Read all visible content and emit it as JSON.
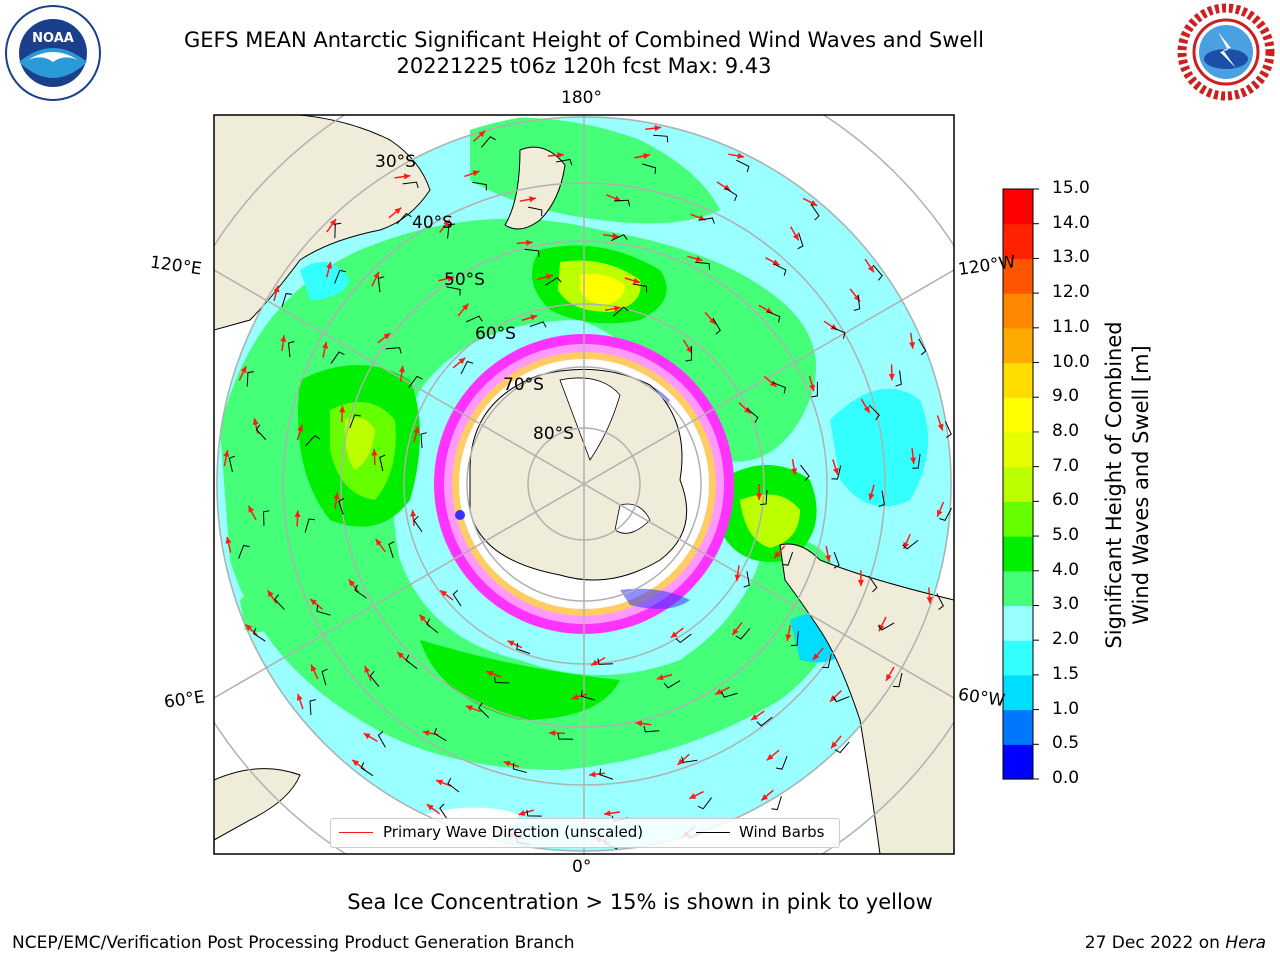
{
  "header": {
    "title_line1": "GEFS MEAN Antarctic Significant Height of Combined Wind Waves and Swell",
    "title_line2": "20221225 t06z 120h fcst   Max: 9.43"
  },
  "logos": {
    "left": {
      "name": "NOAA",
      "ring_text": "NATIONAL OCEANIC AND ATMOSPHERIC ADMINISTRATION · U.S. DEPARTMENT OF COMMERCE"
    },
    "right": {
      "name": "NATIONAL WEATHER SERVICE"
    }
  },
  "map": {
    "longitude_labels": {
      "top": "180°",
      "bottom": "0°",
      "upper_left": "120°E",
      "lower_left": "60°E",
      "upper_right": "120°W",
      "lower_right": "60°W"
    },
    "latitude_labels": [
      "30°S",
      "40°S",
      "50°S",
      "60°S",
      "70°S",
      "80°S"
    ],
    "colors": {
      "land": "#efedda",
      "ocean_background": "#ffffff",
      "arrow": "#ff1a1a",
      "barb": "#000000",
      "grid": "#b0b0b0",
      "sea_ice": [
        "#ff33ff",
        "#ff99ff",
        "#ffcc66",
        "#3333ff"
      ]
    }
  },
  "legend": {
    "primary_wave_label": "Primary Wave Direction (unscaled)",
    "wind_barbs_label": "Wind Barbs"
  },
  "colorbar": {
    "title_line1": "Significant Height of Combined",
    "title_line2": "Wind Waves and Swell [m]",
    "ticks": [
      "0.0",
      "0.5",
      "1.0",
      "1.5",
      "2.0",
      "3.0",
      "4.0",
      "5.0",
      "6.0",
      "7.0",
      "8.0",
      "9.0",
      "10.0",
      "11.0",
      "12.0",
      "13.0",
      "14.0",
      "15.0"
    ],
    "colors": [
      "#0000ff",
      "#0077ff",
      "#00ddff",
      "#33ffff",
      "#99ffff",
      "#44ff77",
      "#00ee00",
      "#66ff00",
      "#bbff00",
      "#e6ff00",
      "#ffff00",
      "#ffdd00",
      "#ffaa00",
      "#ff8800",
      "#ff5500",
      "#ff2200",
      "#ff0000"
    ]
  },
  "footer": {
    "sea_ice_note": "Sea Ice Concentration > 15% is shown in pink to yellow",
    "branch": "NCEP/EMC/Verification Post Processing Product Generation Branch",
    "date": "27 Dec 2022 on ",
    "machine": "Hera"
  }
}
